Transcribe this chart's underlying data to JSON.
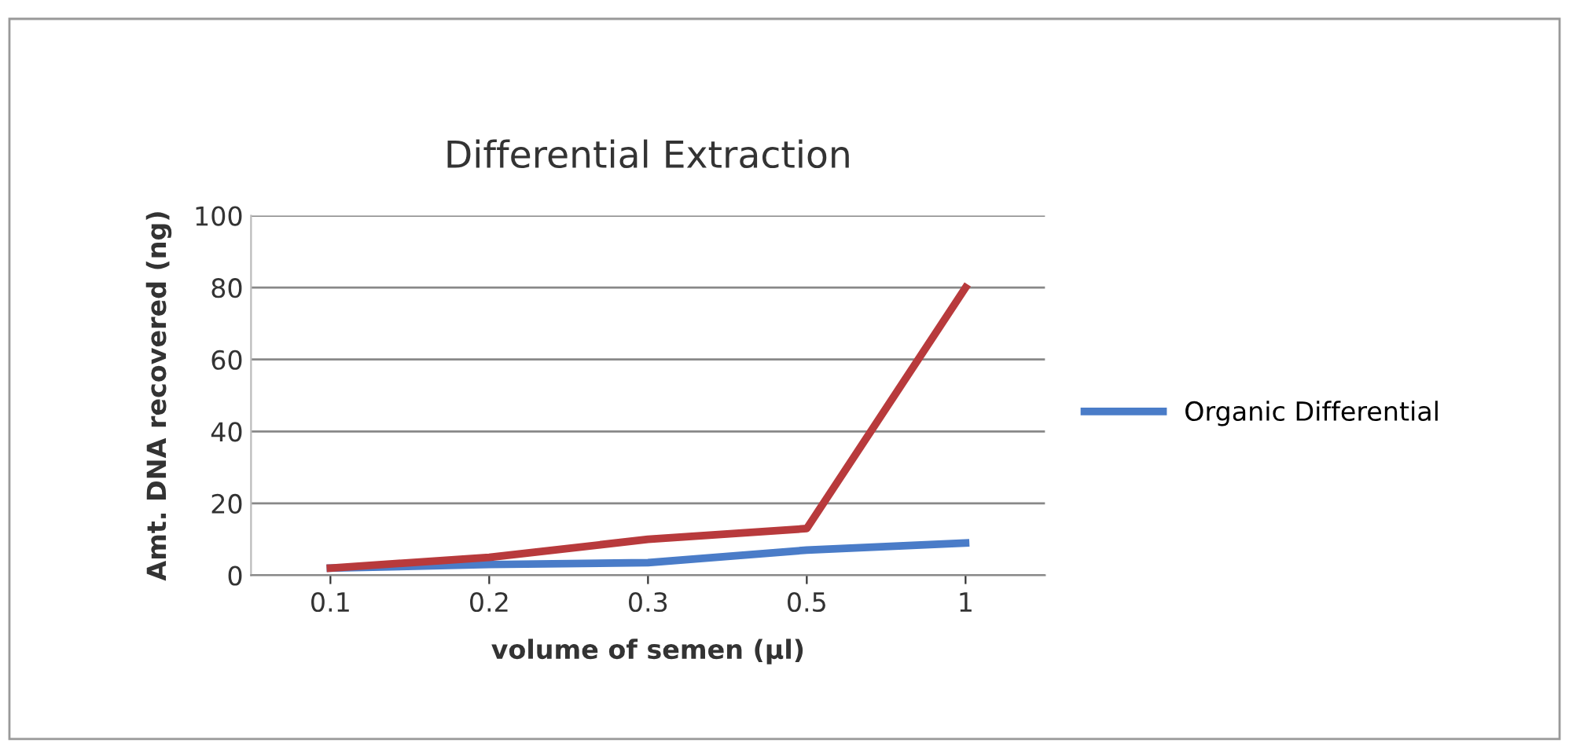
{
  "chart_data": {
    "type": "line",
    "title": "Differential Extraction",
    "xlabel": "volume of semen (µl)",
    "ylabel": "Amt. DNA recovered (ng)",
    "categories": [
      "0.1",
      "0.2",
      "0.3",
      "0.5",
      "1"
    ],
    "series": [
      {
        "name": "Organic Differential",
        "color": "#4a7cc8",
        "values": [
          2,
          3,
          3.5,
          7,
          9
        ]
      },
      {
        "color": "#b83a3c",
        "values": [
          2,
          5,
          10,
          13,
          80
        ]
      }
    ],
    "ylim": [
      0,
      100
    ],
    "yticks": [
      0,
      20,
      40,
      60,
      80,
      100
    ],
    "grid": "y",
    "legend": "right",
    "marker": "none",
    "line_style": "solid"
  }
}
